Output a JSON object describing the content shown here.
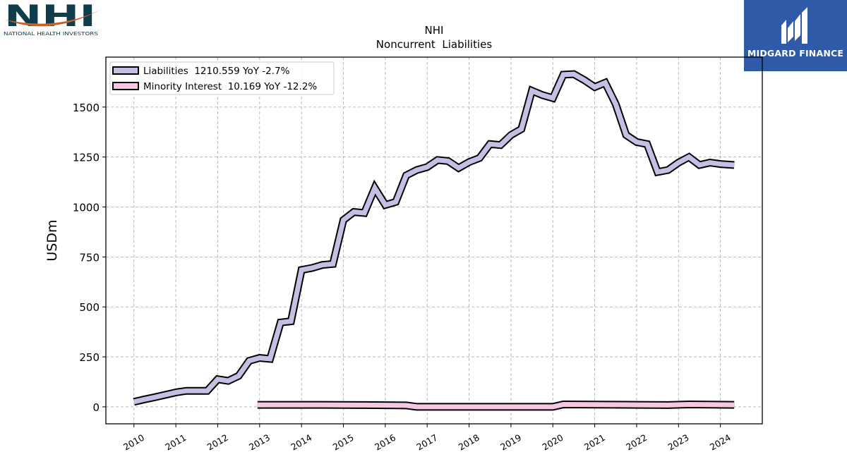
{
  "logos": {
    "nhi": {
      "mark": "NHI",
      "subtitle": "NATIONAL HEALTH INVESTORS",
      "colors": {
        "text": "#0f3d4c",
        "swoosh": "#c8612a"
      }
    },
    "midgard": {
      "name": "MIDGARD FINANCE",
      "background": "#2f5aa8"
    }
  },
  "chart_data": {
    "type": "line",
    "title": "NHI",
    "subtitle": "Noncurrent  Liabilities",
    "ylabel": "USDm",
    "xlabel": "",
    "xlim": [
      2009.33,
      2025.0
    ],
    "ylim": [
      -85,
      1750
    ],
    "yticks": [
      0,
      250,
      500,
      750,
      1000,
      1250,
      1500
    ],
    "xticks": [
      "2010",
      "2011",
      "2012",
      "2013",
      "2014",
      "2015",
      "2016",
      "2017",
      "2018",
      "2019",
      "2020",
      "2021",
      "2022",
      "2023",
      "2024"
    ],
    "grid": true,
    "legend_position": "top-left",
    "series": [
      {
        "name": "Liabilities",
        "legend_label": "Liabilities  1210.559 YoY -2.7%",
        "fill": "#c4c0e3",
        "points": [
          [
            2010.0,
            25
          ],
          [
            2010.25,
            37
          ],
          [
            2010.5,
            48
          ],
          [
            2010.75,
            60
          ],
          [
            2011.0,
            72
          ],
          [
            2011.25,
            80
          ],
          [
            2011.5,
            80
          ],
          [
            2011.75,
            80
          ],
          [
            2012.0,
            138
          ],
          [
            2012.25,
            130
          ],
          [
            2012.5,
            155
          ],
          [
            2012.75,
            230
          ],
          [
            2013.0,
            245
          ],
          [
            2013.25,
            240
          ],
          [
            2013.5,
            422
          ],
          [
            2013.75,
            428
          ],
          [
            2014.0,
            685
          ],
          [
            2014.25,
            695
          ],
          [
            2014.5,
            710
          ],
          [
            2014.75,
            715
          ],
          [
            2015.0,
            935
          ],
          [
            2015.25,
            975
          ],
          [
            2015.5,
            970
          ],
          [
            2015.75,
            1095
          ],
          [
            2016.0,
            1010
          ],
          [
            2016.25,
            1025
          ],
          [
            2016.5,
            1158
          ],
          [
            2016.75,
            1185
          ],
          [
            2017.0,
            1200
          ],
          [
            2017.25,
            1235
          ],
          [
            2017.5,
            1230
          ],
          [
            2017.75,
            1195
          ],
          [
            2018.0,
            1225
          ],
          [
            2018.25,
            1245
          ],
          [
            2018.5,
            1315
          ],
          [
            2018.75,
            1310
          ],
          [
            2019.0,
            1360
          ],
          [
            2019.25,
            1390
          ],
          [
            2019.5,
            1582
          ],
          [
            2019.75,
            1560
          ],
          [
            2020.0,
            1545
          ],
          [
            2020.25,
            1662
          ],
          [
            2020.5,
            1665
          ],
          [
            2020.75,
            1635
          ],
          [
            2021.0,
            1600
          ],
          [
            2021.25,
            1622
          ],
          [
            2021.5,
            1515
          ],
          [
            2021.75,
            1360
          ],
          [
            2022.0,
            1325
          ],
          [
            2022.25,
            1315
          ],
          [
            2022.5,
            1175
          ],
          [
            2022.75,
            1185
          ],
          [
            2023.0,
            1222
          ],
          [
            2023.25,
            1250
          ],
          [
            2023.5,
            1210
          ],
          [
            2023.75,
            1222
          ],
          [
            2024.0,
            1215
          ],
          [
            2024.33,
            1210
          ]
        ]
      },
      {
        "name": "Minority Interest",
        "legend_label": "Minority Interest  10.169 YoY -12.2%",
        "fill": "#f7c6e3",
        "points": [
          [
            2012.95,
            10
          ],
          [
            2013.5,
            10
          ],
          [
            2014.5,
            10
          ],
          [
            2015.5,
            9
          ],
          [
            2016.5,
            7
          ],
          [
            2016.75,
            0
          ],
          [
            2017.5,
            0
          ],
          [
            2018.5,
            0
          ],
          [
            2019.5,
            0
          ],
          [
            2020.0,
            0
          ],
          [
            2020.25,
            12
          ],
          [
            2021.0,
            11
          ],
          [
            2022.0,
            10
          ],
          [
            2022.75,
            9
          ],
          [
            2023.25,
            12
          ],
          [
            2024.33,
            10
          ]
        ]
      }
    ]
  }
}
